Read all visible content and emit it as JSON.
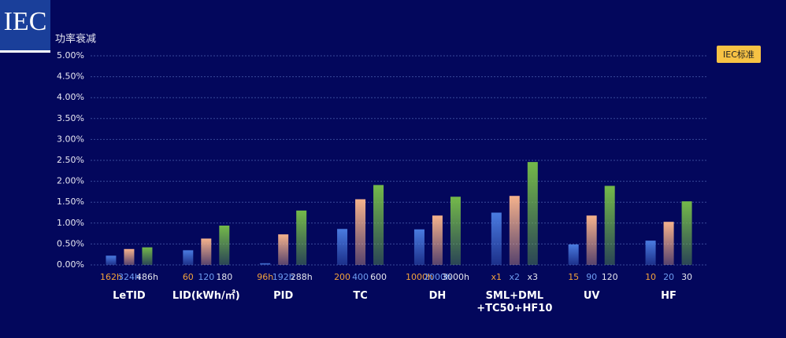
{
  "logo": "IEC",
  "chart_data": {
    "type": "grouped-bar",
    "y_axis_title": "功率衰减",
    "legend": {
      "label": "IEC标准",
      "color": "#f7c244"
    },
    "categories": [
      "LeTID",
      "LID(kWh/㎡)",
      "PID",
      "TC",
      "DH",
      "SML+DML +TC50+HF10",
      "UV",
      "HF"
    ],
    "sub_labels": [
      [
        "162h",
        "324h",
        "486h"
      ],
      [
        "60",
        "120",
        "180"
      ],
      [
        "96h",
        "192h",
        "288h"
      ],
      [
        "200",
        "400",
        "600"
      ],
      [
        "1000h",
        "2000h",
        "3000h"
      ],
      [
        "x1",
        "x2",
        "x3"
      ],
      [
        "15",
        "90",
        "120"
      ],
      [
        "10",
        "20",
        "30"
      ]
    ],
    "series": [
      {
        "color": "#4a7be0",
        "label_color": "#f2a23c",
        "values": [
          0.22,
          0.35,
          0.04,
          0.86,
          0.85,
          1.25,
          0.49,
          0.58
        ]
      },
      {
        "color": "#f5b28c",
        "label_color": "#6e9cf0",
        "values": [
          0.38,
          0.63,
          0.73,
          1.57,
          1.18,
          1.65,
          1.18,
          1.03
        ]
      },
      {
        "color": "#74b94a",
        "label_color": "#e6e6ee",
        "values": [
          0.42,
          0.94,
          1.3,
          1.91,
          1.63,
          2.46,
          1.89,
          1.52
        ]
      }
    ],
    "ylim": [
      0,
      5
    ],
    "yticks": [
      {
        "value": 0,
        "label": "0.00%"
      },
      {
        "value": 0.5,
        "label": "0.50%"
      },
      {
        "value": 1,
        "label": "1.00%"
      },
      {
        "value": 1.5,
        "label": "1.50%"
      },
      {
        "value": 2,
        "label": "2.00%"
      },
      {
        "value": 2.5,
        "label": "2.50%"
      },
      {
        "value": 3,
        "label": "3.00%"
      },
      {
        "value": 3.5,
        "label": "3.50%"
      },
      {
        "value": 4,
        "label": "4.00%"
      },
      {
        "value": 4.5,
        "label": "4.50%"
      },
      {
        "value": 5,
        "label": "5.00%"
      }
    ],
    "grid": true
  }
}
